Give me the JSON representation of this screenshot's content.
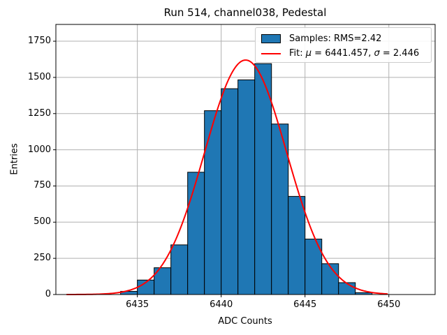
{
  "figure": {
    "background": "#ffffff"
  },
  "chart_data": {
    "type": "histogram",
    "title": "Run 514, channel038, Pedestal",
    "xlabel": "ADC Counts",
    "ylabel": "Entries",
    "xlim": [
      6430.14,
      6452.76
    ],
    "ylim": [
      0,
      1866
    ],
    "xticks": [
      6435,
      6440,
      6445,
      6450
    ],
    "yticks": [
      0,
      250,
      500,
      750,
      1000,
      1250,
      1500,
      1750
    ],
    "grid": true,
    "grid_color": "#b0b0b0",
    "legend_position": "upper right",
    "histogram": {
      "label": "Samples: RMS=2.42",
      "rms": 2.42,
      "fill_color": "#1f77b4",
      "edge_color": "#000000",
      "bin_edges": [
        6434,
        6435,
        6436,
        6437,
        6438,
        6439,
        6440,
        6441,
        6442,
        6443,
        6444,
        6445,
        6446,
        6447,
        6448,
        6449
      ],
      "counts": [
        22,
        100,
        185,
        343,
        845,
        1270,
        1422,
        1483,
        1595,
        1178,
        678,
        383,
        213,
        82,
        13
      ]
    },
    "fit": {
      "label_prefix": "Fit: ",
      "mu_symbol": "μ",
      "mu_text": " = 6441.457, ",
      "sigma_symbol": "σ",
      "sigma_text": " = 2.446",
      "mu": 6441.457,
      "sigma": 2.446,
      "amplitude": 1620,
      "color": "#ff0000",
      "x_range": [
        6430.8,
        6449.9
      ]
    }
  }
}
